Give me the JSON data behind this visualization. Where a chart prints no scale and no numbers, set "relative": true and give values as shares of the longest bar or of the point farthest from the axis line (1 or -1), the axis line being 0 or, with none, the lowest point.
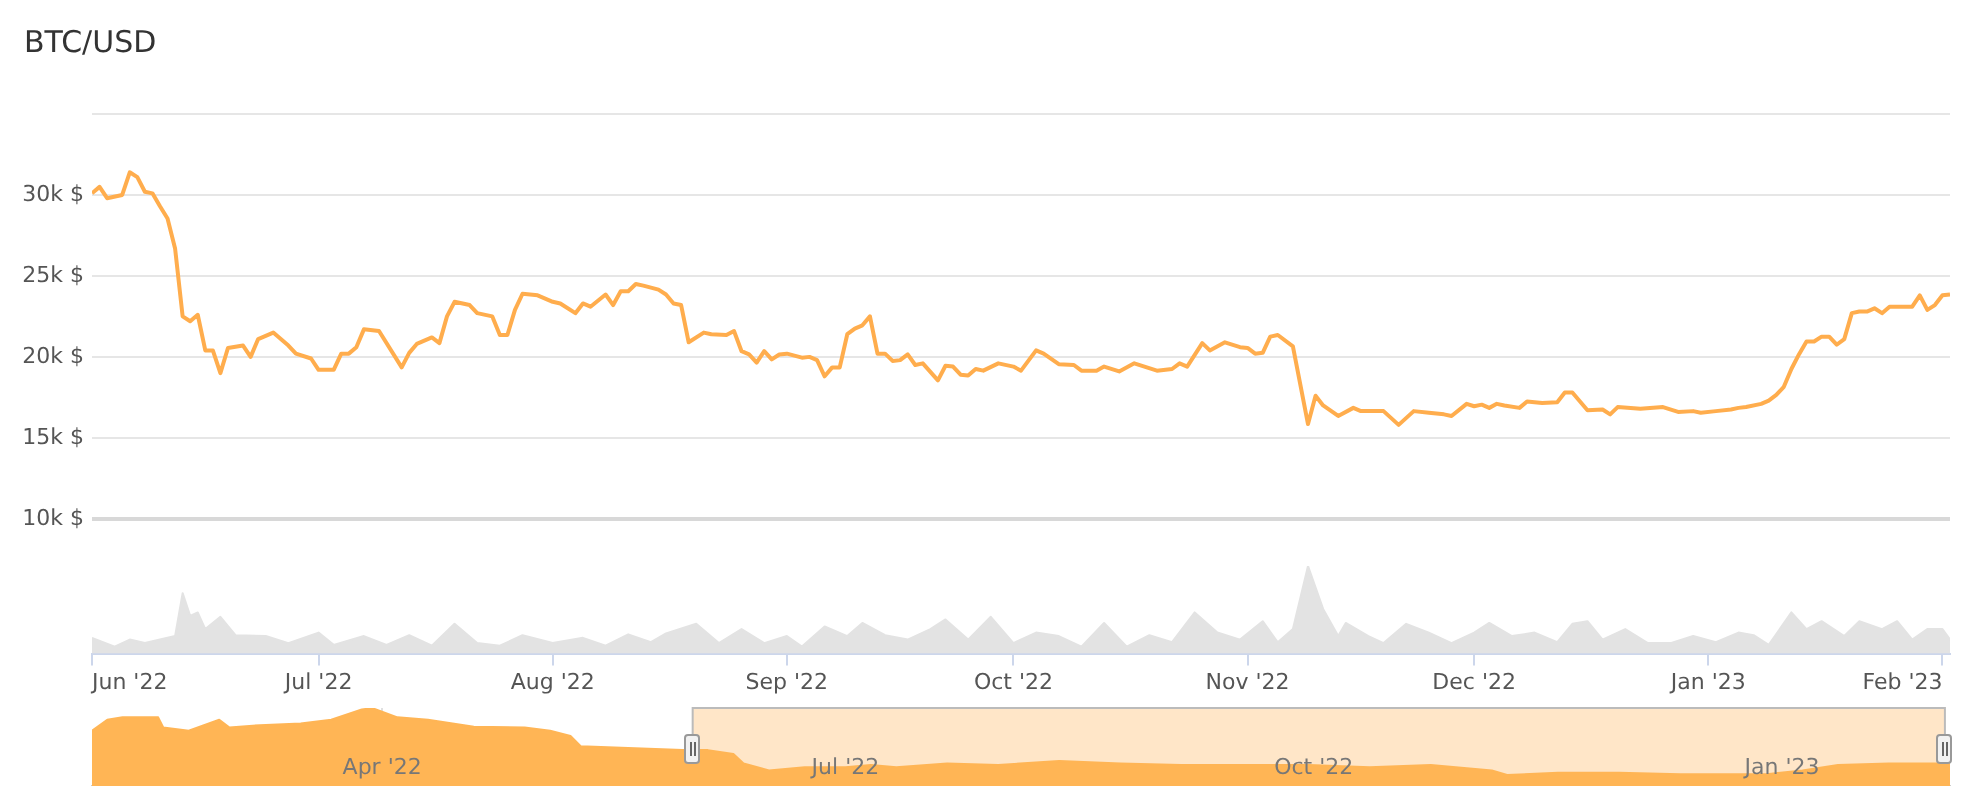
{
  "chart_data": [
    {
      "type": "line",
      "title": "BTC/USD",
      "color": "#ffad4d",
      "grid": "y",
      "tick_labels": "y",
      "xlim": [
        "2022-06-01",
        "2023-02-02"
      ],
      "ylim": [
        10000,
        35000
      ],
      "yticks": [
        {
          "value": 10000,
          "label": "10k $"
        },
        {
          "value": 15000,
          "label": "15k $"
        },
        {
          "value": 20000,
          "label": "20k $"
        },
        {
          "value": 25000,
          "label": "25k $"
        },
        {
          "value": 30000,
          "label": "30k $"
        },
        {
          "value": 35000,
          "label": null
        }
      ],
      "x": [
        "2022-06-01",
        "2022-06-02",
        "2022-06-03",
        "2022-06-05",
        "2022-06-06",
        "2022-06-07",
        "2022-06-08",
        "2022-06-09",
        "2022-06-10",
        "2022-06-11",
        "2022-06-12",
        "2022-06-13",
        "2022-06-14",
        "2022-06-15",
        "2022-06-16",
        "2022-06-17",
        "2022-06-18",
        "2022-06-19",
        "2022-06-21",
        "2022-06-22",
        "2022-06-23",
        "2022-06-25",
        "2022-06-27",
        "2022-06-28",
        "2022-06-30",
        "2022-07-01",
        "2022-07-03",
        "2022-07-04",
        "2022-07-05",
        "2022-07-06",
        "2022-07-07",
        "2022-07-09",
        "2022-07-12",
        "2022-07-13",
        "2022-07-14",
        "2022-07-16",
        "2022-07-17",
        "2022-07-18",
        "2022-07-19",
        "2022-07-21",
        "2022-07-22",
        "2022-07-24",
        "2022-07-25",
        "2022-07-26",
        "2022-07-27",
        "2022-07-28",
        "2022-07-30",
        "2022-08-01",
        "2022-08-02",
        "2022-08-04",
        "2022-08-05",
        "2022-08-06",
        "2022-08-08",
        "2022-08-09",
        "2022-08-10",
        "2022-08-11",
        "2022-08-12",
        "2022-08-13",
        "2022-08-15",
        "2022-08-16",
        "2022-08-17",
        "2022-08-18",
        "2022-08-19",
        "2022-08-21",
        "2022-08-22",
        "2022-08-24",
        "2022-08-25",
        "2022-08-26",
        "2022-08-27",
        "2022-08-28",
        "2022-08-29",
        "2022-08-30",
        "2022-08-31",
        "2022-09-01",
        "2022-09-03",
        "2022-09-04",
        "2022-09-05",
        "2022-09-06",
        "2022-09-07",
        "2022-09-08",
        "2022-09-09",
        "2022-09-10",
        "2022-09-11",
        "2022-09-12",
        "2022-09-13",
        "2022-09-14",
        "2022-09-15",
        "2022-09-16",
        "2022-09-17",
        "2022-09-18",
        "2022-09-19",
        "2022-09-21",
        "2022-09-22",
        "2022-09-23",
        "2022-09-24",
        "2022-09-25",
        "2022-09-26",
        "2022-09-27",
        "2022-09-29",
        "2022-10-01",
        "2022-10-02",
        "2022-10-04",
        "2022-10-05",
        "2022-10-07",
        "2022-10-09",
        "2022-10-10",
        "2022-10-12",
        "2022-10-13",
        "2022-10-15",
        "2022-10-17",
        "2022-10-20",
        "2022-10-22",
        "2022-10-23",
        "2022-10-24",
        "2022-10-26",
        "2022-10-27",
        "2022-10-29",
        "2022-10-31",
        "2022-11-01",
        "2022-11-02",
        "2022-11-03",
        "2022-11-04",
        "2022-11-05",
        "2022-11-07",
        "2022-11-09",
        "2022-11-10",
        "2022-11-11",
        "2022-11-13",
        "2022-11-15",
        "2022-11-16",
        "2022-11-19",
        "2022-11-21",
        "2022-11-23",
        "2022-11-25",
        "2022-11-27",
        "2022-11-28",
        "2022-11-30",
        "2022-12-01",
        "2022-12-02",
        "2022-12-03",
        "2022-12-04",
        "2022-12-05",
        "2022-12-07",
        "2022-12-08",
        "2022-12-10",
        "2022-12-12",
        "2022-12-13",
        "2022-12-14",
        "2022-12-16",
        "2022-12-18",
        "2022-12-19",
        "2022-12-20",
        "2022-12-23",
        "2022-12-26",
        "2022-12-28",
        "2022-12-30",
        "2022-12-31",
        "2023-01-02",
        "2023-01-04",
        "2023-01-05",
        "2023-01-06",
        "2023-01-08",
        "2023-01-09",
        "2023-01-10",
        "2023-01-11",
        "2023-01-12",
        "2023-01-13",
        "2023-01-14",
        "2023-01-15",
        "2023-01-16",
        "2023-01-17",
        "2023-01-18",
        "2023-01-19",
        "2023-01-20",
        "2023-01-21",
        "2023-01-22",
        "2023-01-23",
        "2023-01-24",
        "2023-01-25",
        "2023-01-27",
        "2023-01-28",
        "2023-01-29",
        "2023-01-30",
        "2023-01-31",
        "2023-02-01",
        "2023-02-02"
      ],
      "values": [
        30100,
        30500,
        29800,
        30000,
        31400,
        31100,
        30200,
        30100,
        29300,
        28550,
        26700,
        22500,
        22200,
        22600,
        20400,
        20400,
        19000,
        20550,
        20700,
        20000,
        21100,
        21500,
        20700,
        20200,
        19900,
        19200,
        19200,
        20200,
        20200,
        20600,
        21700,
        21600,
        19350,
        20250,
        20800,
        21200,
        20850,
        22500,
        23400,
        23200,
        22700,
        22500,
        21350,
        21350,
        22900,
        23900,
        23800,
        23400,
        23300,
        22700,
        23300,
        23100,
        23850,
        23200,
        24050,
        24050,
        24500,
        24400,
        24150,
        23850,
        23300,
        23200,
        20900,
        21500,
        21400,
        21350,
        21600,
        20350,
        20150,
        19650,
        20350,
        19850,
        20150,
        20200,
        19950,
        20000,
        19800,
        18800,
        19350,
        19350,
        21400,
        21750,
        21950,
        22500,
        20200,
        20200,
        19750,
        19800,
        20150,
        19500,
        19600,
        18550,
        19450,
        19400,
        18900,
        18850,
        19250,
        19150,
        19600,
        19400,
        19150,
        20400,
        20200,
        19550,
        19500,
        19150,
        19150,
        19400,
        19100,
        19600,
        19150,
        19250,
        19600,
        19400,
        20850,
        20400,
        20900,
        20600,
        20550,
        20200,
        20250,
        21250,
        21350,
        20650,
        15850,
        17600,
        17000,
        16350,
        16850,
        16650,
        16650,
        15800,
        16650,
        16550,
        16450,
        16350,
        17100,
        16950,
        17050,
        16850,
        17100,
        17000,
        16850,
        17250,
        17150,
        17200,
        17800,
        17800,
        16700,
        16750,
        16450,
        16900,
        16800,
        16900,
        16600,
        16650,
        16550,
        16650,
        16750,
        16850,
        16900,
        17100,
        17300,
        17650,
        18150,
        19250,
        20150,
        20950,
        20950,
        21250,
        21250,
        20750,
        21100,
        22700,
        22800,
        22800,
        23000,
        22700,
        23100,
        23100,
        23100,
        23800,
        22900,
        23200,
        23800,
        23850
      ]
    },
    {
      "type": "area",
      "relative": true,
      "color": "#e3e3e3",
      "tick_labels": "x",
      "xlim": [
        "2022-06-01",
        "2023-02-02"
      ],
      "xticks": [
        {
          "value": "2022-06-01",
          "label": "Jun '22"
        },
        {
          "value": "2022-07-01",
          "label": "Jul '22"
        },
        {
          "value": "2022-08-01",
          "label": "Aug '22"
        },
        {
          "value": "2022-09-01",
          "label": "Sep '22"
        },
        {
          "value": "2022-10-01",
          "label": "Oct '22"
        },
        {
          "value": "2022-11-01",
          "label": "Nov '22"
        },
        {
          "value": "2022-12-01",
          "label": "Dec '22"
        },
        {
          "value": "2023-01-01",
          "label": "Jan '23"
        },
        {
          "value": "2023-02-01",
          "label": "Feb '23"
        }
      ],
      "x": [
        "2022-06-01",
        "2022-06-04",
        "2022-06-06",
        "2022-06-08",
        "2022-06-10",
        "2022-06-12",
        "2022-06-13",
        "2022-06-14",
        "2022-06-15",
        "2022-06-16",
        "2022-06-18",
        "2022-06-20",
        "2022-06-24",
        "2022-06-27",
        "2022-07-01",
        "2022-07-03",
        "2022-07-07",
        "2022-07-10",
        "2022-07-13",
        "2022-07-16",
        "2022-07-19",
        "2022-07-22",
        "2022-07-25",
        "2022-07-28",
        "2022-08-01",
        "2022-08-05",
        "2022-08-08",
        "2022-08-11",
        "2022-08-14",
        "2022-08-16",
        "2022-08-20",
        "2022-08-23",
        "2022-08-26",
        "2022-08-29",
        "2022-09-01",
        "2022-09-03",
        "2022-09-06",
        "2022-09-09",
        "2022-09-11",
        "2022-09-14",
        "2022-09-17",
        "2022-09-20",
        "2022-09-22",
        "2022-09-25",
        "2022-09-28",
        "2022-10-01",
        "2022-10-04",
        "2022-10-07",
        "2022-10-10",
        "2022-10-13",
        "2022-10-16",
        "2022-10-19",
        "2022-10-22",
        "2022-10-25",
        "2022-10-28",
        "2022-10-31",
        "2022-11-03",
        "2022-11-05",
        "2022-11-07",
        "2022-11-09",
        "2022-11-11",
        "2022-11-13",
        "2022-11-14",
        "2022-11-17",
        "2022-11-19",
        "2022-11-22",
        "2022-11-25",
        "2022-11-28",
        "2022-12-01",
        "2022-12-03",
        "2022-12-06",
        "2022-12-09",
        "2022-12-12",
        "2022-12-14",
        "2022-12-16",
        "2022-12-18",
        "2022-12-21",
        "2022-12-24",
        "2022-12-27",
        "2022-12-30",
        "2023-01-02",
        "2023-01-05",
        "2023-01-07",
        "2023-01-09",
        "2023-01-12",
        "2023-01-14",
        "2023-01-16",
        "2023-01-19",
        "2023-01-21",
        "2023-01-24",
        "2023-01-26",
        "2023-01-28",
        "2023-01-30",
        "2023-02-01",
        "2023-02-02"
      ],
      "values": [
        0.18,
        0.08,
        0.16,
        0.12,
        0.16,
        0.2,
        0.69,
        0.43,
        0.47,
        0.28,
        0.42,
        0.21,
        0.2,
        0.12,
        0.24,
        0.1,
        0.2,
        0.1,
        0.21,
        0.09,
        0.34,
        0.12,
        0.09,
        0.21,
        0.12,
        0.18,
        0.09,
        0.22,
        0.13,
        0.23,
        0.34,
        0.12,
        0.28,
        0.12,
        0.2,
        0.08,
        0.31,
        0.2,
        0.35,
        0.21,
        0.16,
        0.28,
        0.39,
        0.16,
        0.42,
        0.12,
        0.24,
        0.2,
        0.08,
        0.35,
        0.08,
        0.21,
        0.13,
        0.47,
        0.24,
        0.16,
        0.37,
        0.13,
        0.28,
        1,
        0.51,
        0.2,
        0.35,
        0.2,
        0.12,
        0.34,
        0.24,
        0.12,
        0.24,
        0.35,
        0.2,
        0.24,
        0.13,
        0.34,
        0.37,
        0.16,
        0.28,
        0.12,
        0.12,
        0.2,
        0.13,
        0.24,
        0.21,
        0.1,
        0.47,
        0.28,
        0.37,
        0.2,
        0.37,
        0.28,
        0.37,
        0.16,
        0.28,
        0.28,
        0.16
      ]
    },
    {
      "type": "area",
      "relative": true,
      "color": "#ffb555",
      "grid": "x",
      "tick_labels": "x",
      "xlim": [
        "2022-02-03",
        "2023-02-03"
      ],
      "xticks": [
        {
          "value": "2022-04-01",
          "label": "Apr '22"
        },
        {
          "value": "2022-07-01",
          "label": "Jul '22"
        },
        {
          "value": "2022-10-01",
          "label": "Oct '22"
        },
        {
          "value": "2023-01-01",
          "label": "Jan '23"
        }
      ],
      "bands": [
        {
          "axis": "x",
          "from": "2022-06-01",
          "to": "2023-02-02",
          "color": "#ffe6c8"
        }
      ],
      "x": [
        "2022-02-03",
        "2022-02-06",
        "2022-02-09",
        "2022-02-16",
        "2022-02-17",
        "2022-02-22",
        "2022-02-28",
        "2022-03-02",
        "2022-03-08",
        "2022-03-16",
        "2022-03-22",
        "2022-03-28",
        "2022-03-30",
        "2022-04-04",
        "2022-04-10",
        "2022-04-19",
        "2022-04-29",
        "2022-05-04",
        "2022-05-08",
        "2022-05-10",
        "2022-05-18",
        "2022-05-30",
        "2022-06-04",
        "2022-06-09",
        "2022-06-11",
        "2022-06-16",
        "2022-06-23",
        "2022-07-01",
        "2022-07-06",
        "2022-07-11",
        "2022-07-21",
        "2022-07-31",
        "2022-08-12",
        "2022-08-24",
        "2022-09-05",
        "2022-09-17",
        "2022-09-30",
        "2022-10-12",
        "2022-10-24",
        "2022-11-05",
        "2022-11-08",
        "2022-11-18",
        "2022-11-30",
        "2022-12-12",
        "2022-12-29",
        "2023-01-05",
        "2023-01-12",
        "2023-01-22",
        "2023-02-03"
      ],
      "values": [
        0.71,
        0.85,
        0.88,
        0.88,
        0.75,
        0.71,
        0.85,
        0.75,
        0.78,
        0.8,
        0.85,
        0.98,
        1,
        0.88,
        0.85,
        0.76,
        0.75,
        0.71,
        0.64,
        0.51,
        0.49,
        0.46,
        0.46,
        0.41,
        0.29,
        0.2,
        0.24,
        0.24,
        0.27,
        0.24,
        0.29,
        0.27,
        0.32,
        0.29,
        0.27,
        0.27,
        0.27,
        0.24,
        0.27,
        0.2,
        0.14,
        0.17,
        0.17,
        0.15,
        0.15,
        0.2,
        0.27,
        0.29,
        0.29
      ]
    }
  ]
}
